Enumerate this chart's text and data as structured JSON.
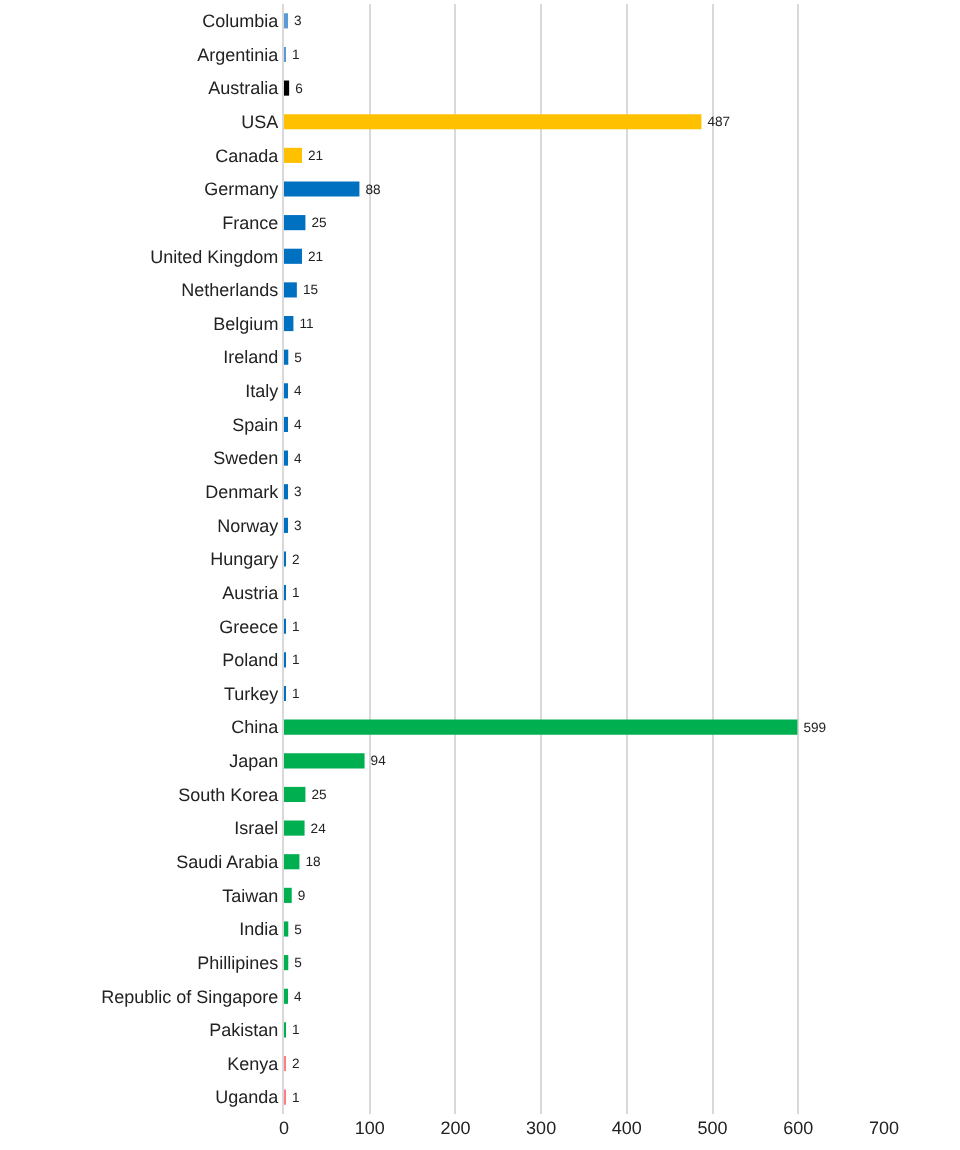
{
  "chart_data": {
    "type": "bar",
    "orientation": "horizontal",
    "categories": [
      "Columbia",
      "Argentinia",
      "Australia",
      "USA",
      "Canada",
      "Germany",
      "France",
      "United Kingdom",
      "Netherlands",
      "Belgium",
      "Ireland",
      "Italy",
      "Spain",
      "Sweden",
      "Denmark",
      "Norway",
      "Hungary",
      "Austria",
      "Greece",
      "Poland",
      "Turkey",
      "China",
      "Japan",
      "South Korea",
      "Israel",
      "Saudi Arabia",
      "Taiwan",
      "India",
      "Phillipines",
      "Republic of Singapore",
      "Pakistan",
      "Kenya",
      "Uganda"
    ],
    "values": [
      3,
      1,
      6,
      487,
      21,
      88,
      25,
      21,
      15,
      11,
      5,
      4,
      4,
      4,
      3,
      3,
      2,
      1,
      1,
      1,
      1,
      599,
      94,
      25,
      24,
      18,
      9,
      5,
      5,
      4,
      1,
      2,
      1
    ],
    "colors": [
      "#5b9bd5",
      "#5b9bd5",
      "#000000",
      "#ffc000",
      "#ffc000",
      "#0070c0",
      "#0070c0",
      "#0070c0",
      "#0070c0",
      "#0070c0",
      "#0070c0",
      "#0070c0",
      "#0070c0",
      "#0070c0",
      "#0070c0",
      "#0070c0",
      "#0070c0",
      "#0070c0",
      "#0070c0",
      "#0070c0",
      "#0070c0",
      "#00b050",
      "#00b050",
      "#00b050",
      "#00b050",
      "#00b050",
      "#00b050",
      "#00b050",
      "#00b050",
      "#00b050",
      "#00b050",
      "#ff7c80",
      "#ff7c80"
    ],
    "xlim": [
      0,
      700
    ],
    "xticks": [
      0,
      100,
      200,
      300,
      400,
      500,
      600,
      700
    ],
    "grid": "x",
    "data_labels": true
  }
}
